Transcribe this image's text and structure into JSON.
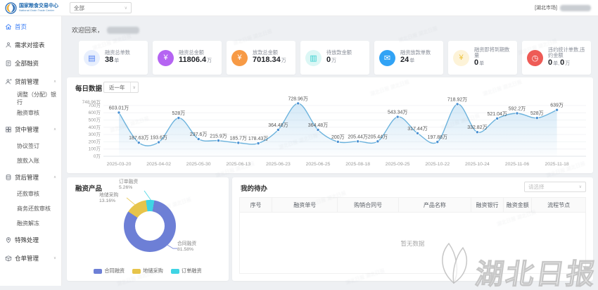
{
  "header": {
    "logo_title": "国家粮食交易中心",
    "logo_subtitle": "National Grain Trade Center",
    "region_select_value": "全部",
    "market_tag": "[湖北市场]"
  },
  "sidebar": {
    "items": [
      {
        "label": "首页",
        "icon": "home-icon",
        "active": true
      },
      {
        "label": "需求对接表",
        "icon": "user-icon"
      },
      {
        "label": "全部融资",
        "icon": "doc-icon"
      },
      {
        "label": "贷前管理",
        "icon": "pre-loan-icon",
        "group": true,
        "children": [
          {
            "label": "调整（分配）银行"
          },
          {
            "label": "融资审核"
          }
        ]
      },
      {
        "label": "贷中管理",
        "icon": "mid-loan-icon",
        "group": true,
        "children": [
          {
            "label": "协议签订"
          },
          {
            "label": "放款入账"
          }
        ]
      },
      {
        "label": "贷后管理",
        "icon": "post-loan-icon",
        "group": true,
        "children": [
          {
            "label": "还款审核"
          },
          {
            "label": "商务还款审核"
          },
          {
            "label": "融资解冻"
          }
        ]
      },
      {
        "label": "特殊处理",
        "icon": "special-icon"
      },
      {
        "label": "仓单管理",
        "icon": "warehouse-icon",
        "group": true,
        "children": []
      }
    ]
  },
  "welcome": {
    "prefix": "欢迎回来，"
  },
  "stats": [
    {
      "label": "融资总单数",
      "parts": [
        {
          "num": "38",
          "unit": "单"
        }
      ],
      "icon": "doc-icon",
      "icon_color": "#4d7ef2",
      "icon_bg": "#e8effd"
    },
    {
      "label": "融资总金额",
      "parts": [
        {
          "num": "11806.4",
          "unit": "万"
        }
      ],
      "icon": "yuan-icon",
      "icon_color": "#ffffff",
      "icon_bg": "#b564f2"
    },
    {
      "label": "放款总金额",
      "parts": [
        {
          "num": "7018.34",
          "unit": "万"
        }
      ],
      "icon": "yuan-icon",
      "icon_color": "#ffffff",
      "icon_bg": "#f79a45"
    },
    {
      "label": "待放款金额",
      "parts": [
        {
          "num": "0",
          "unit": "万"
        }
      ],
      "icon": "card-icon",
      "icon_color": "#35cfd0",
      "icon_bg": "#dcf7f5"
    },
    {
      "label": "融资放款单数",
      "parts": [
        {
          "num": "24",
          "unit": "单"
        }
      ],
      "icon": "mail-icon",
      "icon_color": "#ffffff",
      "icon_bg": "#31a3f5"
    },
    {
      "label": "融资即将到期数量",
      "parts": [
        {
          "num": "0",
          "unit": "单"
        }
      ],
      "icon": "coin-icon",
      "icon_color": "#edc33c",
      "icon_bg": "#fdf3d8"
    },
    {
      "label": "违约统计单数,违约金额",
      "parts": [
        {
          "num": "0",
          "unit": "单,"
        },
        {
          "num": "0",
          "unit": "万"
        }
      ],
      "icon": "clock-icon",
      "icon_color": "#ffffff",
      "icon_bg": "#ee5b56"
    }
  ],
  "daily": {
    "title": "每日数据",
    "range_label": "近一年"
  },
  "products": {
    "title": "融资产品"
  },
  "todo": {
    "title": "我的待办",
    "filter_placeholder": "请选择",
    "columns": [
      "序号",
      "融资单号",
      "购销合同号",
      "产品名称",
      "融资银行",
      "融资金额",
      "流程节点"
    ],
    "empty_text": "暂无数据"
  },
  "watermark": {
    "text": "湖北日报"
  },
  "chart_data": [
    {
      "type": "line",
      "title": "每日数据",
      "range": "近一年",
      "values": [
        603.01,
        187.63,
        193.6,
        528,
        237.6,
        215.9,
        185.7,
        178.43,
        364.48,
        728.96,
        364.48,
        200,
        205.44,
        205.44,
        543.34,
        317.44,
        197.88,
        718.92,
        332.82,
        521.04,
        592.2,
        528,
        639
      ],
      "point_labels": [
        "603.01万",
        "187.63万",
        "193.6万",
        "528万",
        "237.6万",
        "215.9万",
        "185.7万",
        "178.43万",
        "364.48万",
        "728.96万",
        "364.48万",
        "200万",
        "205.44万",
        "205.44万",
        "543.34万",
        "317.44万",
        "197.88万",
        "718.92万",
        "332.82万",
        "521.04万",
        "592.2万",
        "528万",
        "639万"
      ],
      "x_tick_labels": [
        "2025-03-20",
        "2025-04-02",
        "2025-05-30",
        "2025-06-13",
        "2025-06-23",
        "2025-06-25",
        "2025-08-18",
        "2025-09-25",
        "2025-10-22",
        "2025-10-24",
        "2025-11-06",
        "2025-11-18"
      ],
      "x_tick_every": 2,
      "y_ticks": [
        {
          "label": "748.96万",
          "value": 748.96
        },
        {
          "label": "700万",
          "value": 700
        },
        {
          "label": "600万",
          "value": 600
        },
        {
          "label": "500万",
          "value": 500
        },
        {
          "label": "400万",
          "value": 400
        },
        {
          "label": "300万",
          "value": 300
        },
        {
          "label": "200万",
          "value": 200
        },
        {
          "label": "100万",
          "value": 100
        },
        {
          "label": "0万",
          "value": 0
        }
      ],
      "ylim": [
        0,
        748.96
      ],
      "smooth": true,
      "area": true,
      "line_color": "#6cb3dd",
      "point_color": "#4a90d2",
      "area_color_top": "rgba(120,185,230,0.32)",
      "area_color_bottom": "rgba(120,185,230,0.02)",
      "label_color": "#555555"
    },
    {
      "type": "pie",
      "title": "融资产品",
      "donut": true,
      "slices": [
        {
          "name": "合同融资",
          "pct": 81.58,
          "label": "81.58%",
          "color": "#6d7fd6"
        },
        {
          "name": "地储采购",
          "pct": 13.16,
          "label": "13.16%",
          "color": "#e7c44a"
        },
        {
          "name": "订单融资",
          "pct": 5.26,
          "label": "5.26%",
          "color": "#3fd4e4"
        }
      ],
      "legend": [
        "合同融资",
        "地储采购",
        "订单融资"
      ],
      "legend_position": "bottom"
    }
  ]
}
